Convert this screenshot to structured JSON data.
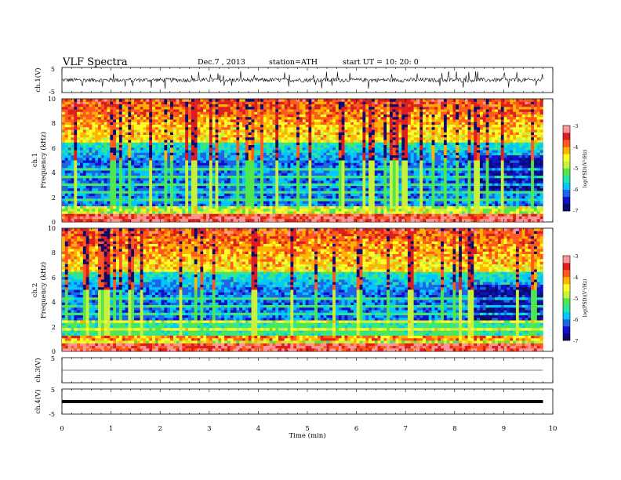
{
  "header": {
    "title": "VLF  Spectra",
    "date": "Dec.7  , 2013",
    "station": "station=ATH",
    "start": "start  UT  =   10: 20: 0"
  },
  "colors": {
    "spectrum_scale": [
      "#0a0a70",
      "#1010c8",
      "#1e64e6",
      "#00c8ff",
      "#28e6a0",
      "#50e650",
      "#c8f03c",
      "#ffff28",
      "#ffb400",
      "#ff5a1e",
      "#dc1e1e",
      "#ff9696"
    ]
  },
  "chart_data": [
    {
      "type": "line",
      "id": "ch1-wave",
      "ylabel": "ch.1(V)",
      "ylim": [
        -5,
        5
      ],
      "yticks": [
        5,
        -5
      ],
      "xlim": [
        0,
        10
      ],
      "description_values": {
        "baseline": 0,
        "noise_amplitude": 0.8,
        "spike_amplitude": 3.5
      }
    },
    {
      "type": "heatmap",
      "id": "ch1-spec",
      "ylabel_channel": "ch.1",
      "ylabel": "Frequency  (kHz)",
      "ylim": [
        0,
        10
      ],
      "yticks": [
        0,
        2,
        4,
        6,
        8,
        10
      ],
      "xlim": [
        0,
        9.8
      ],
      "colorbar": {
        "label": "log(PSD)(V²/Hz)",
        "range": [
          -7,
          -3
        ],
        "ticks": [
          -3,
          -4,
          -5,
          -6,
          -7
        ]
      }
    },
    {
      "type": "heatmap",
      "id": "ch2-spec",
      "ylabel_channel": "ch.2",
      "ylabel": "Frequency  (kHz)",
      "ylim": [
        0,
        10
      ],
      "yticks": [
        0,
        2,
        4,
        6,
        8,
        10
      ],
      "xlim": [
        0,
        9.8
      ],
      "colorbar": {
        "label": "log(PSD)(V²/Hz)",
        "range": [
          -7,
          -3
        ],
        "ticks": [
          -3,
          -4,
          -5,
          -6,
          -7
        ]
      }
    },
    {
      "type": "line",
      "id": "ch3-wave",
      "ylabel": "ch.3(V)",
      "ylim": [
        -5,
        5
      ],
      "yticks": [
        5
      ],
      "xlim": [
        0,
        10
      ]
    },
    {
      "type": "line",
      "id": "ch4-wave",
      "ylabel": "ch.4(V)",
      "ylim": [
        -5,
        5
      ],
      "yticks": [
        5,
        -5
      ],
      "xlim": [
        0,
        10
      ]
    }
  ],
  "x_axis": {
    "label": "Time  (min)",
    "ticks": [
      0,
      1,
      2,
      3,
      4,
      5,
      6,
      7,
      8,
      9,
      10
    ]
  }
}
